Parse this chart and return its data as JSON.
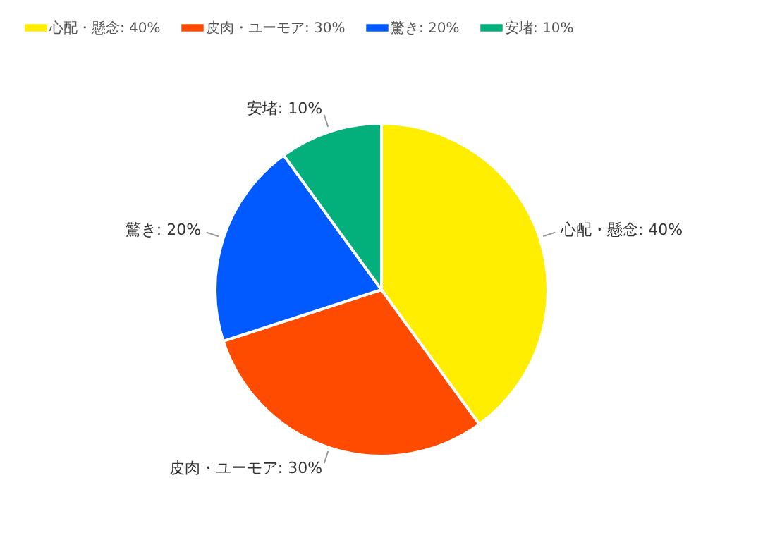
{
  "chart_data": {
    "type": "pie",
    "categories": [
      "心配・懸念: 40%",
      "皮肉・ユーモア: 30%",
      "驚き: 20%",
      "安堵: 10%"
    ],
    "values": [
      40,
      30,
      20,
      10
    ],
    "colors": [
      "#ffee00",
      "#ff4b00",
      "#005aff",
      "#03af7a"
    ],
    "legend": "top"
  }
}
